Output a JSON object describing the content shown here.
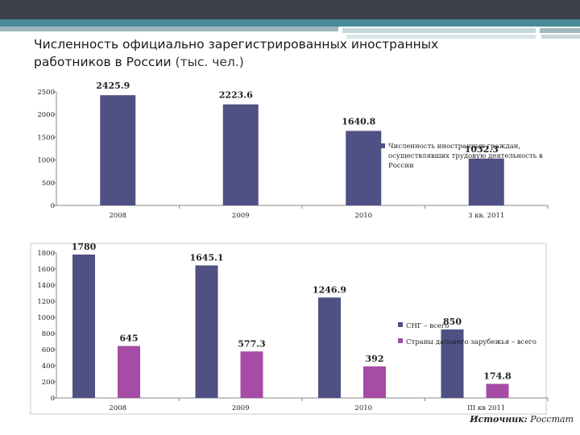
{
  "slide": {
    "title_line1": "Численность официально зарегистрированных иностранных",
    "title_line2": "работников в России",
    "title_unit": "(тыс. чел.)",
    "source_label": "Источник:",
    "source_value": "Росстат",
    "colors": {
      "top_band": "#3a3f48",
      "top_stripe": "#4a8a96"
    }
  },
  "chart_data": [
    {
      "type": "bar",
      "title": "",
      "categories": [
        "2008",
        "2009",
        "2010",
        "3 кв. 2011"
      ],
      "series": [
        {
          "name": "Численность иностранных граждан, осуществлявших трудовую деятельность в России",
          "values": [
            2425.9,
            2223.6,
            1640.8,
            1032.3
          ],
          "color": "#4f5185"
        }
      ],
      "data_labels": [
        "2425.9",
        "2223.6",
        "1640.8",
        "1032.3"
      ],
      "ylim": [
        0,
        2500
      ],
      "yticks": [
        0,
        500,
        1000,
        1500,
        2000,
        2500
      ],
      "grid": false,
      "legend": "right",
      "xlabel": "",
      "ylabel": ""
    },
    {
      "type": "bar",
      "title": "",
      "categories": [
        "2008",
        "2009",
        "2010",
        "III кв 2011"
      ],
      "series": [
        {
          "name": "СНГ – всего",
          "values": [
            1780,
            1645.1,
            1246.9,
            850
          ],
          "color": "#4f5185"
        },
        {
          "name": "Страны дальнего зарубежья – всего",
          "values": [
            645,
            577.3,
            392,
            174.8
          ],
          "color": "#a64ca6"
        }
      ],
      "data_labels": [
        [
          "1780",
          "1645.1",
          "1246.9",
          "850"
        ],
        [
          "645",
          "577.3",
          "392",
          "174.8"
        ]
      ],
      "ylim": [
        0,
        1800
      ],
      "yticks": [
        0,
        200,
        400,
        600,
        800,
        1000,
        1200,
        1400,
        1600,
        1800
      ],
      "grid": false,
      "legend": "right",
      "xlabel": "",
      "ylabel": ""
    }
  ]
}
